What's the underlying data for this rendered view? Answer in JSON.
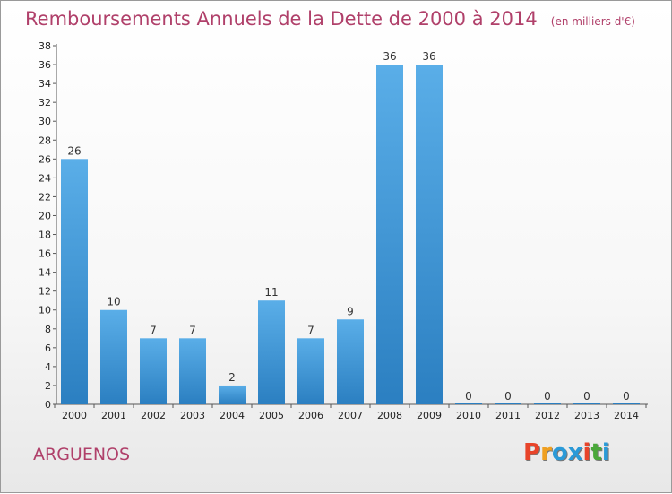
{
  "title": "Remboursements Annuels de la Dette de 2000 à 2014",
  "unit_note": "(en milliers d'€)",
  "commune": "ARGUENOS",
  "logo": {
    "text": "Proxiti",
    "colors": [
      "#e8442a",
      "#f0a020",
      "#2a9ad8",
      "#2a9ad8",
      "#e8442a",
      "#4aa83a",
      "#2a9ad8"
    ]
  },
  "colors": {
    "bar_light": "#5aaee8",
    "bar_dark": "#2b7fc1",
    "title": "#b0406a"
  },
  "chart_data": {
    "type": "bar",
    "title": "Remboursements Annuels de la Dette de 2000 à 2014",
    "categories": [
      "2000",
      "2001",
      "2002",
      "2003",
      "2004",
      "2005",
      "2006",
      "2007",
      "2008",
      "2009",
      "2010",
      "2011",
      "2012",
      "2013",
      "2014"
    ],
    "values": [
      26,
      10,
      7,
      7,
      2,
      11,
      7,
      9,
      36,
      36,
      0,
      0,
      0,
      0,
      0
    ],
    "ylim": [
      0,
      38
    ],
    "yticks": [
      0,
      2,
      4,
      6,
      8,
      10,
      12,
      14,
      16,
      18,
      20,
      22,
      24,
      26,
      28,
      30,
      32,
      34,
      36,
      38
    ],
    "grid": false,
    "data_labels": true,
    "xlabel": "",
    "ylabel": ""
  }
}
